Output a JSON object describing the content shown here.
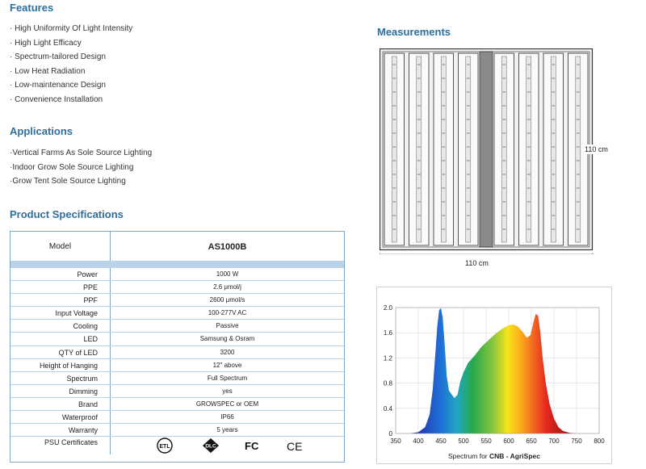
{
  "features": {
    "title": "Features",
    "items": [
      "· High Uniformity Of Light Intensity",
      "· High Light Efficacy",
      "· Spectrum-tailored Design",
      "· Low Heat Radiation",
      "· Low-maintenance Design",
      "· Convenience Installation"
    ]
  },
  "applications": {
    "title": "Applications",
    "items": [
      "·Vertical Farms As Sole Source Lighting",
      "·Indoor Grow Sole Source Lighting",
      "·Grow Tent Sole Source Lighting"
    ]
  },
  "specs": {
    "title": "Product Specifications",
    "model_label": "Model",
    "model_value": "AS1000B",
    "rows": [
      {
        "label": "Power",
        "value": "1000 W"
      },
      {
        "label": "PPE",
        "value": "2.6 μmol/j"
      },
      {
        "label": "PPF",
        "value": "2600 μmol/s"
      },
      {
        "label": "Input Voltage",
        "value": "100-277V AC"
      },
      {
        "label": "Cooling",
        "value": "Passive"
      },
      {
        "label": "LED",
        "value": "Samsung & Osram"
      },
      {
        "label": "QTY of LED",
        "value": "3200"
      },
      {
        "label": "Height of Hanging",
        "value": "12\" above"
      },
      {
        "label": "Spectrum",
        "value": "Full Spectrum"
      },
      {
        "label": "Dimming",
        "value": "yes"
      },
      {
        "label": "Brand",
        "value": "GROWSPEC or OEM"
      },
      {
        "label": "Waterproof",
        "value": "IP66"
      },
      {
        "label": "Warranty",
        "value": "5 years"
      }
    ],
    "cert_label": "PSU Certificates",
    "certs": [
      "ETL",
      "DLC",
      "FC",
      "CE"
    ]
  },
  "measurements": {
    "title": "Measurements",
    "height_label": "110 cm",
    "width_label": "110 cm"
  },
  "chart_data": {
    "type": "area",
    "xlabel_prefix": "Spectrum for ",
    "xlabel_bold": "CNB - AgriSpec",
    "xlim": [
      350,
      800
    ],
    "ylim": [
      0,
      2.0
    ],
    "xticks": [
      350,
      400,
      450,
      500,
      550,
      600,
      650,
      700,
      750,
      800
    ],
    "yticks": [
      0,
      0.4,
      0.8,
      1.2,
      1.6,
      2.0
    ],
    "ytick_labels": [
      "0",
      "0.4",
      "0.8",
      "1.2",
      "1.6",
      "2.0"
    ],
    "x": [
      380,
      400,
      415,
      425,
      432,
      438,
      442,
      446,
      450,
      454,
      458,
      463,
      468,
      474,
      480,
      487,
      493,
      500,
      510,
      525,
      540,
      555,
      570,
      585,
      600,
      610,
      620,
      630,
      640,
      648,
      655,
      660,
      665,
      670,
      675,
      682,
      690,
      700,
      710,
      720,
      735,
      750,
      780
    ],
    "y": [
      0,
      0.02,
      0.1,
      0.3,
      0.7,
      1.3,
      1.7,
      1.96,
      1.99,
      1.85,
      1.45,
      0.9,
      0.68,
      0.62,
      0.56,
      0.62,
      0.83,
      0.97,
      1.12,
      1.24,
      1.38,
      1.48,
      1.58,
      1.66,
      1.72,
      1.73,
      1.7,
      1.62,
      1.52,
      1.56,
      1.78,
      1.9,
      1.87,
      1.6,
      1.2,
      0.8,
      0.48,
      0.24,
      0.1,
      0.04,
      0.01,
      0,
      0
    ]
  }
}
